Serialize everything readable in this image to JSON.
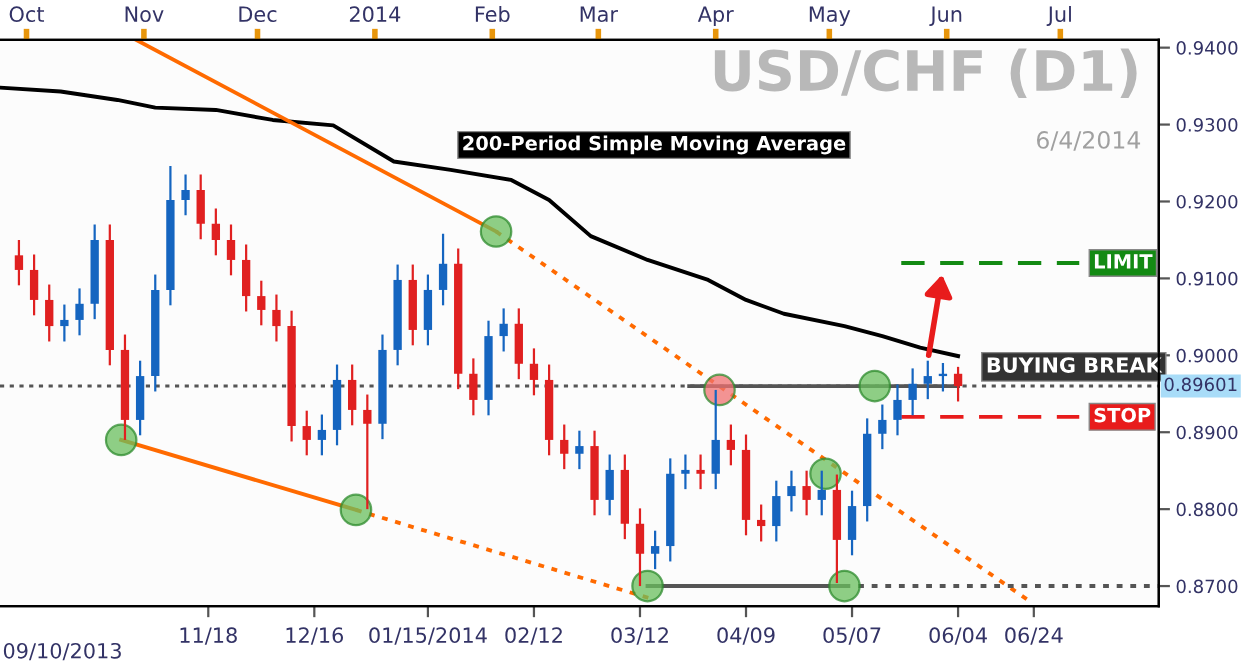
{
  "chart_data": {
    "type": "candlestick",
    "title": "USD/CHF (D1)",
    "subtitle": "6/4/2014",
    "x": [
      "2013-09-29",
      "2013-10-03",
      "2013-10-07",
      "2013-10-11",
      "2013-10-15",
      "2013-10-19",
      "2013-10-23",
      "2013-10-27",
      "2013-10-31",
      "2013-11-04",
      "2013-11-08",
      "2013-11-12",
      "2013-11-16",
      "2013-11-20",
      "2013-11-24",
      "2013-11-28",
      "2013-12-02",
      "2013-12-06",
      "2013-12-10",
      "2013-12-14",
      "2013-12-18",
      "2013-12-22",
      "2013-12-26",
      "2013-12-30",
      "2014-01-03",
      "2014-01-07",
      "2014-01-11",
      "2014-01-15",
      "2014-01-19",
      "2014-01-23",
      "2014-01-27",
      "2014-01-31",
      "2014-02-04",
      "2014-02-08",
      "2014-02-12",
      "2014-02-16",
      "2014-02-20",
      "2014-02-24",
      "2014-02-28",
      "2014-03-04",
      "2014-03-08",
      "2014-03-12",
      "2014-03-16",
      "2014-03-20",
      "2014-03-24",
      "2014-03-28",
      "2014-04-01",
      "2014-04-05",
      "2014-04-09",
      "2014-04-13",
      "2014-04-17",
      "2014-04-21",
      "2014-04-25",
      "2014-04-29",
      "2014-05-03",
      "2014-05-07",
      "2014-05-11",
      "2014-05-15",
      "2014-05-19",
      "2014-05-23",
      "2014-05-27",
      "2014-05-31",
      "2014-06-04"
    ],
    "ohlc": [
      [
        0.913,
        0.915,
        0.9091,
        0.9111
      ],
      [
        0.9111,
        0.9131,
        0.9052,
        0.9072
      ],
      [
        0.9072,
        0.9092,
        0.9018,
        0.9038
      ],
      [
        0.9038,
        0.9066,
        0.9018,
        0.9046
      ],
      [
        0.9046,
        0.9087,
        0.9026,
        0.9067
      ],
      [
        0.9067,
        0.917,
        0.9047,
        0.915
      ],
      [
        0.915,
        0.917,
        0.8987,
        0.9007
      ],
      [
        0.9007,
        0.9027,
        0.889,
        0.8916
      ],
      [
        0.8916,
        0.8993,
        0.8896,
        0.8973
      ],
      [
        0.8973,
        0.9105,
        0.8953,
        0.9085
      ],
      [
        0.9085,
        0.9246,
        0.9065,
        0.9202
      ],
      [
        0.9202,
        0.9235,
        0.9182,
        0.9215
      ],
      [
        0.9215,
        0.9235,
        0.9151,
        0.9171
      ],
      [
        0.9171,
        0.9191,
        0.913,
        0.915
      ],
      [
        0.915,
        0.917,
        0.9104,
        0.9124
      ],
      [
        0.9124,
        0.9144,
        0.9057,
        0.9077
      ],
      [
        0.9077,
        0.9097,
        0.9039,
        0.9059
      ],
      [
        0.9059,
        0.9079,
        0.9018,
        0.9038
      ],
      [
        0.9038,
        0.9058,
        0.8888,
        0.8908
      ],
      [
        0.8908,
        0.8928,
        0.887,
        0.889
      ],
      [
        0.889,
        0.8923,
        0.887,
        0.8903
      ],
      [
        0.8903,
        0.8988,
        0.8883,
        0.8968
      ],
      [
        0.8968,
        0.8988,
        0.8909,
        0.8929
      ],
      [
        0.8929,
        0.8949,
        0.88,
        0.8911
      ],
      [
        0.8911,
        0.9027,
        0.8891,
        0.9007
      ],
      [
        0.9007,
        0.9118,
        0.8987,
        0.9098
      ],
      [
        0.9098,
        0.9118,
        0.9013,
        0.9033
      ],
      [
        0.9033,
        0.9105,
        0.9013,
        0.9085
      ],
      [
        0.9085,
        0.9158,
        0.9065,
        0.9119
      ],
      [
        0.9119,
        0.9139,
        0.8956,
        0.8976
      ],
      [
        0.8976,
        0.8996,
        0.8922,
        0.8942
      ],
      [
        0.8942,
        0.9045,
        0.8922,
        0.9025
      ],
      [
        0.9025,
        0.9061,
        0.9005,
        0.9041
      ],
      [
        0.9041,
        0.9061,
        0.8969,
        0.8989
      ],
      [
        0.8989,
        0.9009,
        0.8948,
        0.8968
      ],
      [
        0.8968,
        0.8988,
        0.887,
        0.889
      ],
      [
        0.889,
        0.891,
        0.8852,
        0.8872
      ],
      [
        0.8872,
        0.8902,
        0.8852,
        0.8882
      ],
      [
        0.8882,
        0.8902,
        0.8792,
        0.8812
      ],
      [
        0.8812,
        0.8871,
        0.8792,
        0.8851
      ],
      [
        0.8851,
        0.8871,
        0.8761,
        0.8781
      ],
      [
        0.8781,
        0.8801,
        0.87,
        0.8742
      ],
      [
        0.8742,
        0.8772,
        0.8722,
        0.8752
      ],
      [
        0.8752,
        0.8866,
        0.8732,
        0.8846
      ],
      [
        0.8846,
        0.8871,
        0.8826,
        0.8851
      ],
      [
        0.8851,
        0.8871,
        0.8826,
        0.8846
      ],
      [
        0.8846,
        0.8955,
        0.8826,
        0.889
      ],
      [
        0.889,
        0.891,
        0.8857,
        0.8877
      ],
      [
        0.8877,
        0.8897,
        0.8766,
        0.8786
      ],
      [
        0.8786,
        0.8806,
        0.8758,
        0.8778
      ],
      [
        0.8778,
        0.8837,
        0.8758,
        0.8817
      ],
      [
        0.8817,
        0.885,
        0.8797,
        0.883
      ],
      [
        0.883,
        0.885,
        0.8792,
        0.8812
      ],
      [
        0.8812,
        0.885,
        0.8792,
        0.8825
      ],
      [
        0.8825,
        0.8845,
        0.8704,
        0.876
      ],
      [
        0.876,
        0.8824,
        0.874,
        0.8804
      ],
      [
        0.8804,
        0.8918,
        0.8784,
        0.8898
      ],
      [
        0.8898,
        0.8936,
        0.8878,
        0.8916
      ],
      [
        0.8916,
        0.8962,
        0.8896,
        0.8942
      ],
      [
        0.8942,
        0.8983,
        0.8922,
        0.8963
      ],
      [
        0.8963,
        0.8993,
        0.8943,
        0.8973
      ],
      [
        0.8973,
        0.899,
        0.8953,
        0.8976
      ],
      [
        0.8976,
        0.8985,
        0.894,
        0.896
      ]
    ],
    "colors": [
      "#e02020",
      "#e02020",
      "#e02020",
      "#1565c0",
      "#1565c0",
      "#1565c0",
      "#e02020",
      "#e02020",
      "#1565c0",
      "#1565c0",
      "#1565c0",
      "#1565c0",
      "#e02020",
      "#e02020",
      "#e02020",
      "#e02020",
      "#e02020",
      "#e02020",
      "#e02020",
      "#e02020",
      "#1565c0",
      "#1565c0",
      "#e02020",
      "#e02020",
      "#1565c0",
      "#1565c0",
      "#e02020",
      "#1565c0",
      "#1565c0",
      "#e02020",
      "#e02020",
      "#1565c0",
      "#1565c0",
      "#e02020",
      "#e02020",
      "#e02020",
      "#e02020",
      "#1565c0",
      "#e02020",
      "#1565c0",
      "#e02020",
      "#e02020",
      "#1565c0",
      "#1565c0",
      "#1565c0",
      "#e02020",
      "#1565c0",
      "#e02020",
      "#e02020",
      "#e02020",
      "#1565c0",
      "#1565c0",
      "#e02020",
      "#1565c0",
      "#e02020",
      "#1565c0",
      "#1565c0",
      "#1565c0",
      "#1565c0",
      "#1565c0",
      "#1565c0",
      "#1565c0",
      "#e02020"
    ],
    "series": [
      {
        "type": "line",
        "name": "200-Period Simple Moving Average",
        "color": "#000000",
        "line_style": "solid",
        "x": [
          "2013-09-24",
          "2013-10-10",
          "2013-10-25",
          "2013-11-04",
          "2013-11-20",
          "2013-12-05",
          "2013-12-21",
          "2014-01-06",
          "2014-01-21",
          "2014-02-06",
          "2014-02-16",
          "2014-02-27",
          "2014-03-14",
          "2014-03-30",
          "2014-04-09",
          "2014-04-19",
          "2014-05-05",
          "2014-05-15",
          "2014-05-25",
          "2014-06-04"
        ],
        "values": [
          0.9348,
          0.9343,
          0.9332,
          0.9322,
          0.9319,
          0.9306,
          0.9299,
          0.9252,
          0.9241,
          0.9228,
          0.9202,
          0.9155,
          0.9124,
          0.9098,
          0.9072,
          0.9054,
          0.9038,
          0.9025,
          0.901,
          0.8999
        ]
      },
      {
        "type": "line",
        "color": "#ff6a00",
        "line_style": "solid",
        "x": [
          "2013-10-30",
          "2014-02-02"
        ],
        "values": [
          0.941,
          0.9161
        ]
      },
      {
        "type": "line",
        "color": "#ff6a00",
        "line_style": "dotted",
        "x": [
          "2014-02-02",
          "2014-06-23"
        ],
        "values": [
          0.9161,
          0.868
        ]
      },
      {
        "type": "line",
        "color": "#ff6a00",
        "line_style": "solid",
        "x": [
          "2013-10-26",
          "2013-12-27"
        ],
        "values": [
          0.889,
          0.8799
        ]
      },
      {
        "type": "line",
        "color": "#ff6a00",
        "line_style": "dotted",
        "x": [
          "2013-12-27",
          "2014-03-16"
        ],
        "values": [
          0.8799,
          0.8682
        ]
      },
      {
        "type": "line",
        "color": "#555555",
        "line_style": "solid",
        "x": [
          "2014-03-25",
          "2014-06-04"
        ],
        "values": [
          0.896,
          0.896
        ]
      },
      {
        "type": "line",
        "color": "#555555",
        "line_style": "solid",
        "x": [
          "2014-03-14",
          "2014-05-05"
        ],
        "values": [
          0.87,
          0.87
        ]
      },
      {
        "type": "line",
        "color": "#555555",
        "line_style": "dotted",
        "x": [
          "2014-05-05",
          "2014-07-27"
        ],
        "values": [
          0.87,
          0.87
        ]
      },
      {
        "type": "line",
        "name": "LIMIT",
        "color": "#138a13",
        "line_style": "dashed",
        "x": [
          "2014-05-20",
          "2014-07-06"
        ],
        "values": [
          0.912,
          0.912
        ]
      },
      {
        "type": "line",
        "name": "STOP",
        "color": "#e81c1c",
        "line_style": "dashed",
        "x": [
          "2014-05-20",
          "2014-07-06"
        ],
        "values": [
          0.892,
          0.892
        ]
      },
      {
        "type": "scatter",
        "color": "#6abf5e",
        "marker": "circle",
        "x": [
          "2013-10-26",
          "2013-12-27",
          "2014-02-02",
          "2014-03-14",
          "2014-04-30",
          "2014-05-05",
          "2014-05-13"
        ],
        "values": [
          0.889,
          0.8799,
          0.9161,
          0.87,
          0.8846,
          0.87,
          0.896
        ]
      },
      {
        "type": "scatter",
        "color": "#f07070",
        "marker": "circle",
        "x": [
          "2014-04-02"
        ],
        "values": [
          0.8955
        ]
      }
    ],
    "ref_lines": [
      {
        "axis": "y",
        "value": 0.89601,
        "label": "0.89601",
        "color": "#555555",
        "line_style": "dotted"
      }
    ],
    "annotations": [
      {
        "text": "BUYING BREAK",
        "x": "2014-06-04",
        "y": 0.8985
      },
      "09/10/2013"
    ],
    "xlim": [
      "2013-09-24",
      "2014-07-27"
    ],
    "xticks": [
      {
        "value": "2013-11-18",
        "label": "11/18"
      },
      {
        "value": "2013-12-16",
        "label": "12/16"
      },
      {
        "value": "2014-01-15",
        "label": "01/15/2014"
      },
      {
        "value": "2014-02-12",
        "label": "02/12"
      },
      {
        "value": "2014-03-12",
        "label": "03/12"
      },
      {
        "value": "2014-04-09",
        "label": "04/09"
      },
      {
        "value": "2014-05-07",
        "label": "05/07"
      },
      {
        "value": "2014-06-04",
        "label": "06/04"
      },
      {
        "value": "2014-06-24",
        "label": "06/24"
      }
    ],
    "x2lim": [
      "2013-09-24",
      "2014-07-27"
    ],
    "x2ticks": [
      {
        "value": "2013-10-01",
        "label": "Oct"
      },
      {
        "value": "2013-11-01",
        "label": "Nov"
      },
      {
        "value": "2013-12-01",
        "label": "Dec"
      },
      {
        "value": "2014-01-01",
        "label": "2014"
      },
      {
        "value": "2014-02-01",
        "label": "Feb"
      },
      {
        "value": "2014-03-01",
        "label": "Mar"
      },
      {
        "value": "2014-04-01",
        "label": "Apr"
      },
      {
        "value": "2014-05-01",
        "label": "May"
      },
      {
        "value": "2014-06-01",
        "label": "Jun"
      },
      {
        "value": "2014-07-01",
        "label": "Jul"
      }
    ],
    "ylim": [
      0.8674,
      0.941
    ],
    "yticks": [
      {
        "value": 0.87,
        "label": "0.8700"
      },
      {
        "value": 0.88,
        "label": "0.8800"
      },
      {
        "value": 0.89,
        "label": "0.8900"
      },
      {
        "value": 0.9,
        "label": "0.9000"
      },
      {
        "value": 0.91,
        "label": "0.9100"
      },
      {
        "value": 0.92,
        "label": "0.9200"
      },
      {
        "value": 0.93,
        "label": "0.9300"
      },
      {
        "value": 0.94,
        "label": "0.9400"
      }
    ]
  }
}
